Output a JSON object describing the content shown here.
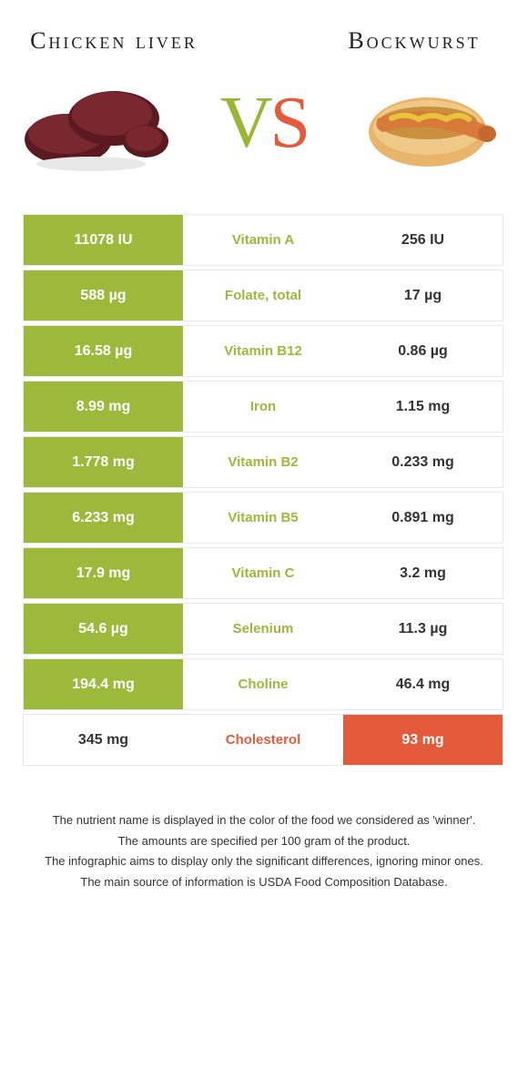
{
  "header": {
    "left_title": "Chicken liver",
    "right_title": "Bockwurst",
    "vs_v": "V",
    "vs_s": "S"
  },
  "colors": {
    "green": "#9cb93c",
    "orange": "#e45b3b",
    "liver_dark": "#5b1a20",
    "liver_mid": "#7a2830",
    "bun": "#e8b56a",
    "bun_dark": "#c8903f",
    "sausage": "#d97a3a",
    "mustard": "#e8c43a"
  },
  "rows": [
    {
      "nutrient": "Vitamin A",
      "left": "11078 IU",
      "right": "256 IU",
      "winner": "left"
    },
    {
      "nutrient": "Folate, total",
      "left": "588 µg",
      "right": "17 µg",
      "winner": "left"
    },
    {
      "nutrient": "Vitamin B12",
      "left": "16.58 µg",
      "right": "0.86 µg",
      "winner": "left"
    },
    {
      "nutrient": "Iron",
      "left": "8.99 mg",
      "right": "1.15 mg",
      "winner": "left"
    },
    {
      "nutrient": "Vitamin B2",
      "left": "1.778 mg",
      "right": "0.233 mg",
      "winner": "left"
    },
    {
      "nutrient": "Vitamin B5",
      "left": "6.233 mg",
      "right": "0.891 mg",
      "winner": "left"
    },
    {
      "nutrient": "Vitamin C",
      "left": "17.9 mg",
      "right": "3.2 mg",
      "winner": "left"
    },
    {
      "nutrient": "Selenium",
      "left": "54.6 µg",
      "right": "11.3 µg",
      "winner": "left"
    },
    {
      "nutrient": "Choline",
      "left": "194.4 mg",
      "right": "46.4 mg",
      "winner": "left"
    },
    {
      "nutrient": "Cholesterol",
      "left": "345 mg",
      "right": "93 mg",
      "winner": "right"
    }
  ],
  "footer": {
    "line1": "The nutrient name is displayed in the color of the food we considered as 'winner'.",
    "line2": "The amounts are specified per 100 gram of the product.",
    "line3": "The infographic aims to display only the significant differences, ignoring minor ones.",
    "line4": "The main source of information is USDA Food Composition Database."
  }
}
